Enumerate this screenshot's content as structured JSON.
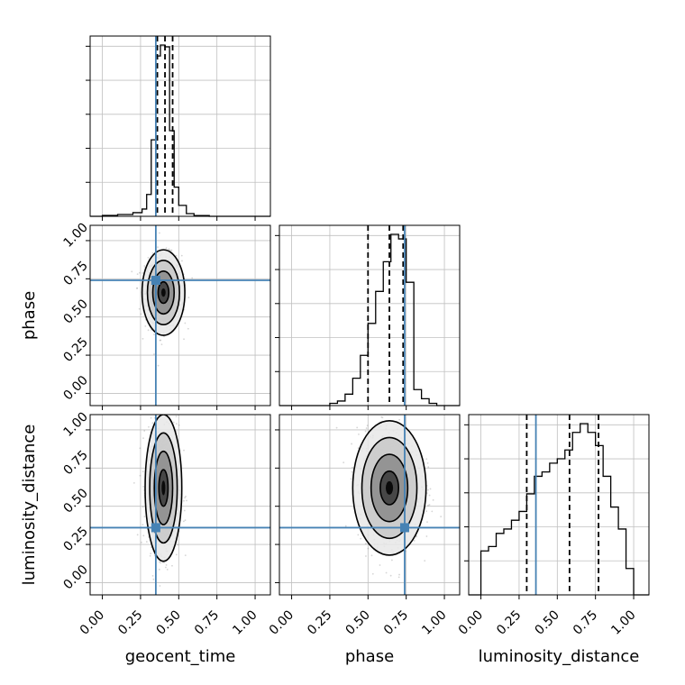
{
  "chart_data": {
    "type": "corner",
    "parameters": [
      "geocent_time",
      "phase",
      "luminosity_distance"
    ],
    "ticks": [
      "0.00",
      "0.25",
      "0.50",
      "0.75",
      "1.00"
    ],
    "axis_range": [
      -0.08,
      1.1
    ],
    "grid": true,
    "truths": {
      "geocent_time": 0.35,
      "phase": 0.74,
      "luminosity_distance": 0.36
    },
    "truth_color": "#4682b4",
    "histograms": [
      {
        "parameter": "geocent_time",
        "bin_edges": [
          -0.08,
          0.0,
          0.1,
          0.2,
          0.26,
          0.29,
          0.32,
          0.35,
          0.38,
          0.41,
          0.44,
          0.47,
          0.5,
          0.55,
          0.6,
          0.7,
          1.1
        ],
        "heights": [
          0,
          0.5,
          1,
          2,
          4,
          12,
          42,
          88,
          94,
          93,
          47,
          16,
          6,
          1.5,
          0.4,
          0
        ],
        "quantiles": [
          0.36,
          0.41,
          0.46
        ]
      },
      {
        "parameter": "phase",
        "bin_edges": [
          -0.08,
          0.25,
          0.3,
          0.35,
          0.4,
          0.45,
          0.5,
          0.55,
          0.6,
          0.65,
          0.7,
          0.75,
          0.8,
          0.85,
          0.9,
          0.95,
          1.1
        ],
        "heights": [
          0,
          1,
          2,
          5,
          12,
          22,
          36,
          50,
          63,
          75,
          73,
          54,
          7,
          3,
          1,
          0
        ],
        "quantiles": [
          0.5,
          0.64,
          0.73
        ]
      },
      {
        "parameter": "luminosity_distance",
        "bin_edges": [
          -0.08,
          0.0,
          0.05,
          0.1,
          0.15,
          0.2,
          0.25,
          0.3,
          0.35,
          0.4,
          0.45,
          0.5,
          0.55,
          0.6,
          0.65,
          0.7,
          0.75,
          0.8,
          0.85,
          0.9,
          0.95,
          1.0,
          1.1
        ],
        "heights": [
          0,
          10,
          11,
          14,
          15,
          17,
          19,
          23,
          27,
          28,
          30,
          31,
          33,
          37,
          39,
          37,
          34,
          27,
          20,
          15,
          6,
          0
        ],
        "quantiles": [
          0.3,
          0.58,
          0.77
        ]
      }
    ],
    "density_2d": [
      {
        "x_param": "geocent_time",
        "y_param": "phase",
        "center": [
          0.4,
          0.66
        ],
        "spread": [
          0.07,
          0.14
        ]
      },
      {
        "x_param": "geocent_time",
        "y_param": "luminosity_distance",
        "center": [
          0.4,
          0.62
        ],
        "spread": [
          0.06,
          0.24
        ]
      },
      {
        "x_param": "phase",
        "y_param": "luminosity_distance",
        "center": [
          0.64,
          0.62
        ],
        "spread": [
          0.12,
          0.22
        ]
      }
    ]
  }
}
